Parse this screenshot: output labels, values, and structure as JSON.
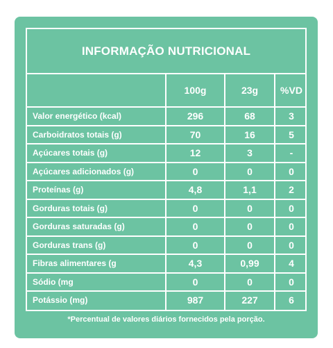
{
  "title": "INFORMAÇÃO NUTRICIONAL",
  "columns": [
    "100g",
    "23g",
    "%VD"
  ],
  "rows": [
    {
      "label": "Valor energético (kcal)",
      "values": [
        "296",
        "68",
        "3"
      ]
    },
    {
      "label": "Carboidratos totais (g)",
      "values": [
        "70",
        "16",
        "5"
      ]
    },
    {
      "label": "Açúcares totais (g)",
      "values": [
        "12",
        "3",
        "-"
      ]
    },
    {
      "label": "Açúcares adicionados (g)",
      "values": [
        "0",
        "0",
        "0"
      ]
    },
    {
      "label": "Proteínas (g)",
      "values": [
        "4,8",
        "1,1",
        "2"
      ]
    },
    {
      "label": "Gorduras totais (g)",
      "values": [
        "0",
        "0",
        "0"
      ]
    },
    {
      "label": "Gorduras saturadas (g)",
      "values": [
        "0",
        "0",
        "0"
      ]
    },
    {
      "label": "Gorduras trans (g)",
      "values": [
        "0",
        "0",
        "0"
      ]
    },
    {
      "label": "Fibras alimentares (g",
      "values": [
        "4,3",
        "0,99",
        "4"
      ]
    },
    {
      "label": "Sódio (mg",
      "values": [
        "0",
        "0",
        "0"
      ]
    },
    {
      "label": "Potássio (mg)",
      "values": [
        "987",
        "227",
        "6"
      ]
    }
  ],
  "footnote": "*Percentual de valores diários fornecidos pela porção.",
  "colors": {
    "background": "#6cc3a2",
    "text": "#ffffff"
  }
}
